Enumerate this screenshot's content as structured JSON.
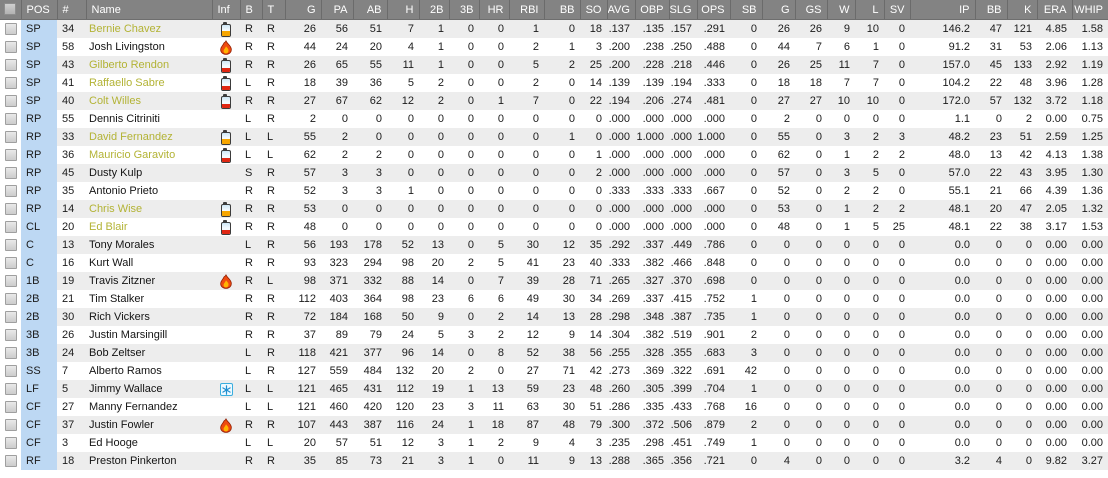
{
  "table": {
    "columns": [
      {
        "key": "sel",
        "label": "",
        "align": "center"
      },
      {
        "key": "pos",
        "label": "POS",
        "align": "left"
      },
      {
        "key": "num",
        "label": "#",
        "align": "left"
      },
      {
        "key": "name",
        "label": "Name",
        "align": "left"
      },
      {
        "key": "inf",
        "label": "Inf",
        "align": "left"
      },
      {
        "key": "b",
        "label": "B",
        "align": "left"
      },
      {
        "key": "t",
        "label": "T",
        "align": "left"
      },
      {
        "key": "g",
        "label": "G",
        "align": "right"
      },
      {
        "key": "pa",
        "label": "PA",
        "align": "right"
      },
      {
        "key": "ab",
        "label": "AB",
        "align": "right"
      },
      {
        "key": "h",
        "label": "H",
        "align": "right"
      },
      {
        "key": "d2b",
        "label": "2B",
        "align": "right"
      },
      {
        "key": "d3b",
        "label": "3B",
        "align": "right"
      },
      {
        "key": "hr",
        "label": "HR",
        "align": "right"
      },
      {
        "key": "rbi",
        "label": "RBI",
        "align": "right"
      },
      {
        "key": "bb",
        "label": "BB",
        "align": "right"
      },
      {
        "key": "so",
        "label": "SO",
        "align": "right"
      },
      {
        "key": "avg",
        "label": "AVG",
        "align": "right"
      },
      {
        "key": "obp",
        "label": "OBP",
        "align": "right"
      },
      {
        "key": "slg",
        "label": "SLG",
        "align": "right"
      },
      {
        "key": "ops",
        "label": "OPS",
        "align": "right"
      },
      {
        "key": "sb",
        "label": "SB",
        "align": "right"
      },
      {
        "key": "g2",
        "label": "G",
        "align": "right"
      },
      {
        "key": "gs",
        "label": "GS",
        "align": "right"
      },
      {
        "key": "w",
        "label": "W",
        "align": "right"
      },
      {
        "key": "l",
        "label": "L",
        "align": "right"
      },
      {
        "key": "sv",
        "label": "SV",
        "align": "right"
      },
      {
        "key": "ip",
        "label": "IP",
        "align": "right"
      },
      {
        "key": "bb2",
        "label": "BB",
        "align": "right"
      },
      {
        "key": "k",
        "label": "K",
        "align": "right"
      },
      {
        "key": "era",
        "label": "ERA",
        "align": "right"
      },
      {
        "key": "whip",
        "label": "WHIP",
        "align": "right"
      }
    ],
    "rows": [
      {
        "pos": "SP",
        "number": "34",
        "name": "Bernie Chavez",
        "fatigued": true,
        "inf": "battery-medium",
        "bats": "R",
        "throws": "R",
        "stats": [
          "26",
          "56",
          "51",
          "7",
          "1",
          "0",
          "0",
          "1",
          "0",
          "18",
          ".137",
          ".135",
          ".157",
          ".291",
          "0",
          "26",
          "26",
          "9",
          "10",
          "0",
          "146.2",
          "47",
          "121",
          "4.85",
          "1.58"
        ]
      },
      {
        "pos": "SP",
        "number": "58",
        "name": "Josh Livingston",
        "fatigued": false,
        "inf": "fire",
        "bats": "R",
        "throws": "R",
        "stats": [
          "44",
          "24",
          "20",
          "4",
          "1",
          "0",
          "0",
          "2",
          "1",
          "3",
          ".200",
          ".238",
          ".250",
          ".488",
          "0",
          "44",
          "7",
          "6",
          "1",
          "0",
          "91.2",
          "31",
          "53",
          "2.06",
          "1.13"
        ]
      },
      {
        "pos": "SP",
        "number": "43",
        "name": "Gilberto Rendon",
        "fatigued": true,
        "inf": "battery-low",
        "bats": "R",
        "throws": "R",
        "stats": [
          "26",
          "65",
          "55",
          "11",
          "1",
          "0",
          "0",
          "5",
          "2",
          "25",
          ".200",
          ".228",
          ".218",
          ".446",
          "0",
          "26",
          "25",
          "11",
          "7",
          "0",
          "157.0",
          "45",
          "133",
          "2.92",
          "1.19"
        ]
      },
      {
        "pos": "SP",
        "number": "41",
        "name": "Raffaello Sabre",
        "fatigued": true,
        "inf": "battery-low",
        "bats": "L",
        "throws": "R",
        "stats": [
          "18",
          "39",
          "36",
          "5",
          "2",
          "0",
          "0",
          "2",
          "0",
          "14",
          ".139",
          ".139",
          ".194",
          ".333",
          "0",
          "18",
          "18",
          "7",
          "7",
          "0",
          "104.2",
          "22",
          "48",
          "3.96",
          "1.28"
        ]
      },
      {
        "pos": "SP",
        "number": "40",
        "name": "Colt Willes",
        "fatigued": true,
        "inf": "battery-low",
        "bats": "R",
        "throws": "R",
        "stats": [
          "27",
          "67",
          "62",
          "12",
          "2",
          "0",
          "1",
          "7",
          "0",
          "22",
          ".194",
          ".206",
          ".274",
          ".481",
          "0",
          "27",
          "27",
          "10",
          "10",
          "0",
          "172.0",
          "57",
          "132",
          "3.72",
          "1.18"
        ]
      },
      {
        "pos": "RP",
        "number": "55",
        "name": "Dennis Citriniti",
        "fatigued": false,
        "inf": "",
        "bats": "L",
        "throws": "R",
        "stats": [
          "2",
          "0",
          "0",
          "0",
          "0",
          "0",
          "0",
          "0",
          "0",
          "0",
          ".000",
          ".000",
          ".000",
          ".000",
          "0",
          "2",
          "0",
          "0",
          "0",
          "0",
          "1.1",
          "0",
          "2",
          "0.00",
          "0.75"
        ]
      },
      {
        "pos": "RP",
        "number": "33",
        "name": "David Fernandez",
        "fatigued": true,
        "inf": "battery-medium",
        "bats": "L",
        "throws": "L",
        "stats": [
          "55",
          "2",
          "0",
          "0",
          "0",
          "0",
          "0",
          "0",
          "1",
          "0",
          ".000",
          "1.000",
          ".000",
          "1.000",
          "0",
          "55",
          "0",
          "3",
          "2",
          "3",
          "48.2",
          "23",
          "51",
          "2.59",
          "1.25"
        ]
      },
      {
        "pos": "RP",
        "number": "36",
        "name": "Mauricio Garavito",
        "fatigued": true,
        "inf": "battery-low",
        "bats": "L",
        "throws": "L",
        "stats": [
          "62",
          "2",
          "2",
          "0",
          "0",
          "0",
          "0",
          "0",
          "0",
          "1",
          ".000",
          ".000",
          ".000",
          ".000",
          "0",
          "62",
          "0",
          "1",
          "2",
          "2",
          "48.0",
          "13",
          "42",
          "4.13",
          "1.38"
        ]
      },
      {
        "pos": "RP",
        "number": "45",
        "name": "Dusty Kulp",
        "fatigued": false,
        "inf": "",
        "bats": "S",
        "throws": "R",
        "stats": [
          "57",
          "3",
          "3",
          "0",
          "0",
          "0",
          "0",
          "0",
          "0",
          "2",
          ".000",
          ".000",
          ".000",
          ".000",
          "0",
          "57",
          "0",
          "3",
          "5",
          "0",
          "57.0",
          "22",
          "43",
          "3.95",
          "1.30"
        ]
      },
      {
        "pos": "RP",
        "number": "35",
        "name": "Antonio Prieto",
        "fatigued": false,
        "inf": "",
        "bats": "R",
        "throws": "R",
        "stats": [
          "52",
          "3",
          "3",
          "1",
          "0",
          "0",
          "0",
          "0",
          "0",
          "0",
          ".333",
          ".333",
          ".333",
          ".667",
          "0",
          "52",
          "0",
          "2",
          "2",
          "0",
          "55.1",
          "21",
          "66",
          "4.39",
          "1.36"
        ]
      },
      {
        "pos": "RP",
        "number": "14",
        "name": "Chris Wise",
        "fatigued": true,
        "inf": "battery-medium",
        "bats": "R",
        "throws": "R",
        "stats": [
          "53",
          "0",
          "0",
          "0",
          "0",
          "0",
          "0",
          "0",
          "0",
          "0",
          ".000",
          ".000",
          ".000",
          ".000",
          "0",
          "53",
          "0",
          "1",
          "2",
          "2",
          "48.1",
          "20",
          "47",
          "2.05",
          "1.32"
        ]
      },
      {
        "pos": "CL",
        "number": "20",
        "name": "Ed Blair",
        "fatigued": true,
        "inf": "battery-low",
        "bats": "R",
        "throws": "R",
        "stats": [
          "48",
          "0",
          "0",
          "0",
          "0",
          "0",
          "0",
          "0",
          "0",
          "0",
          ".000",
          ".000",
          ".000",
          ".000",
          "0",
          "48",
          "0",
          "1",
          "5",
          "25",
          "48.1",
          "22",
          "38",
          "3.17",
          "1.53"
        ]
      },
      {
        "pos": "C",
        "number": "13",
        "name": "Tony Morales",
        "fatigued": false,
        "inf": "",
        "bats": "L",
        "throws": "R",
        "stats": [
          "56",
          "193",
          "178",
          "52",
          "13",
          "0",
          "5",
          "30",
          "12",
          "35",
          ".292",
          ".337",
          ".449",
          ".786",
          "0",
          "0",
          "0",
          "0",
          "0",
          "0",
          "0.0",
          "0",
          "0",
          "0.00",
          "0.00"
        ]
      },
      {
        "pos": "C",
        "number": "16",
        "name": "Kurt Wall",
        "fatigued": false,
        "inf": "",
        "bats": "R",
        "throws": "R",
        "stats": [
          "93",
          "323",
          "294",
          "98",
          "20",
          "2",
          "5",
          "41",
          "23",
          "40",
          ".333",
          ".382",
          ".466",
          ".848",
          "0",
          "0",
          "0",
          "0",
          "0",
          "0",
          "0.0",
          "0",
          "0",
          "0.00",
          "0.00"
        ]
      },
      {
        "pos": "1B",
        "number": "19",
        "name": "Travis Zitzner",
        "fatigued": false,
        "inf": "fire",
        "bats": "R",
        "throws": "L",
        "stats": [
          "98",
          "371",
          "332",
          "88",
          "14",
          "0",
          "7",
          "39",
          "28",
          "71",
          ".265",
          ".327",
          ".370",
          ".698",
          "0",
          "0",
          "0",
          "0",
          "0",
          "0",
          "0.0",
          "0",
          "0",
          "0.00",
          "0.00"
        ]
      },
      {
        "pos": "2B",
        "number": "21",
        "name": "Tim Stalker",
        "fatigued": false,
        "inf": "",
        "bats": "R",
        "throws": "R",
        "stats": [
          "112",
          "403",
          "364",
          "98",
          "23",
          "6",
          "6",
          "49",
          "30",
          "34",
          ".269",
          ".337",
          ".415",
          ".752",
          "1",
          "0",
          "0",
          "0",
          "0",
          "0",
          "0.0",
          "0",
          "0",
          "0.00",
          "0.00"
        ]
      },
      {
        "pos": "2B",
        "number": "30",
        "name": "Rich Vickers",
        "fatigued": false,
        "inf": "",
        "bats": "R",
        "throws": "R",
        "stats": [
          "72",
          "184",
          "168",
          "50",
          "9",
          "0",
          "2",
          "14",
          "13",
          "28",
          ".298",
          ".348",
          ".387",
          ".735",
          "1",
          "0",
          "0",
          "0",
          "0",
          "0",
          "0.0",
          "0",
          "0",
          "0.00",
          "0.00"
        ]
      },
      {
        "pos": "3B",
        "number": "26",
        "name": "Justin Marsingill",
        "fatigued": false,
        "inf": "",
        "bats": "R",
        "throws": "R",
        "stats": [
          "37",
          "89",
          "79",
          "24",
          "5",
          "3",
          "2",
          "12",
          "9",
          "14",
          ".304",
          ".382",
          ".519",
          ".901",
          "2",
          "0",
          "0",
          "0",
          "0",
          "0",
          "0.0",
          "0",
          "0",
          "0.00",
          "0.00"
        ]
      },
      {
        "pos": "3B",
        "number": "24",
        "name": "Bob Zeltser",
        "fatigued": false,
        "inf": "",
        "bats": "L",
        "throws": "R",
        "stats": [
          "118",
          "421",
          "377",
          "96",
          "14",
          "0",
          "8",
          "52",
          "38",
          "56",
          ".255",
          ".328",
          ".355",
          ".683",
          "3",
          "0",
          "0",
          "0",
          "0",
          "0",
          "0.0",
          "0",
          "0",
          "0.00",
          "0.00"
        ]
      },
      {
        "pos": "SS",
        "number": "7",
        "name": "Alberto Ramos",
        "fatigued": false,
        "inf": "",
        "bats": "L",
        "throws": "R",
        "stats": [
          "127",
          "559",
          "484",
          "132",
          "20",
          "2",
          "0",
          "27",
          "71",
          "42",
          ".273",
          ".369",
          ".322",
          ".691",
          "42",
          "0",
          "0",
          "0",
          "0",
          "0",
          "0.0",
          "0",
          "0",
          "0.00",
          "0.00"
        ]
      },
      {
        "pos": "LF",
        "number": "5",
        "name": "Jimmy Wallace",
        "fatigued": false,
        "inf": "snowflake",
        "bats": "L",
        "throws": "L",
        "stats": [
          "121",
          "465",
          "431",
          "112",
          "19",
          "1",
          "13",
          "59",
          "23",
          "48",
          ".260",
          ".305",
          ".399",
          ".704",
          "1",
          "0",
          "0",
          "0",
          "0",
          "0",
          "0.0",
          "0",
          "0",
          "0.00",
          "0.00"
        ]
      },
      {
        "pos": "CF",
        "number": "27",
        "name": "Manny Fernandez",
        "fatigued": false,
        "inf": "",
        "bats": "L",
        "throws": "L",
        "stats": [
          "121",
          "460",
          "420",
          "120",
          "23",
          "3",
          "11",
          "63",
          "30",
          "51",
          ".286",
          ".335",
          ".433",
          ".768",
          "16",
          "0",
          "0",
          "0",
          "0",
          "0",
          "0.0",
          "0",
          "0",
          "0.00",
          "0.00"
        ]
      },
      {
        "pos": "CF",
        "number": "37",
        "name": "Justin Fowler",
        "fatigued": false,
        "inf": "fire",
        "bats": "R",
        "throws": "R",
        "stats": [
          "107",
          "443",
          "387",
          "116",
          "24",
          "1",
          "18",
          "87",
          "48",
          "79",
          ".300",
          ".372",
          ".506",
          ".879",
          "2",
          "0",
          "0",
          "0",
          "0",
          "0",
          "0.0",
          "0",
          "0",
          "0.00",
          "0.00"
        ]
      },
      {
        "pos": "CF",
        "number": "3",
        "name": "Ed Hooge",
        "fatigued": false,
        "inf": "",
        "bats": "L",
        "throws": "L",
        "stats": [
          "20",
          "57",
          "51",
          "12",
          "3",
          "1",
          "2",
          "9",
          "4",
          "3",
          ".235",
          ".298",
          ".451",
          ".749",
          "1",
          "0",
          "0",
          "0",
          "0",
          "0",
          "0.0",
          "0",
          "0",
          "0.00",
          "0.00"
        ]
      },
      {
        "pos": "RF",
        "number": "18",
        "name": "Preston Pinkerton",
        "fatigued": false,
        "inf": "",
        "bats": "R",
        "throws": "R",
        "stats": [
          "35",
          "85",
          "73",
          "21",
          "3",
          "1",
          "0",
          "11",
          "9",
          "13",
          ".288",
          ".365",
          ".356",
          ".721",
          "0",
          "4",
          "0",
          "0",
          "0",
          "0",
          "3.2",
          "4",
          "0",
          "9.82",
          "3.27"
        ]
      }
    ]
  },
  "icons": {
    "battery-medium": "fatigue-battery-medium-icon",
    "battery-low": "fatigue-battery-low-icon",
    "fire": "hot-streak-fire-icon",
    "snowflake": "cold-streak-snowflake-icon"
  },
  "colors": {
    "header_bg": "#838383",
    "header_text": "#ffffff",
    "pos_col_bg": "#bdd8f3",
    "row_stripe": "#ededed",
    "player_fatigued_name": "#b3b335",
    "battery_medium": "#f7a600",
    "battery_low": "#e02713",
    "fire": "#ee4a10",
    "snowflake": "#3aaede"
  }
}
